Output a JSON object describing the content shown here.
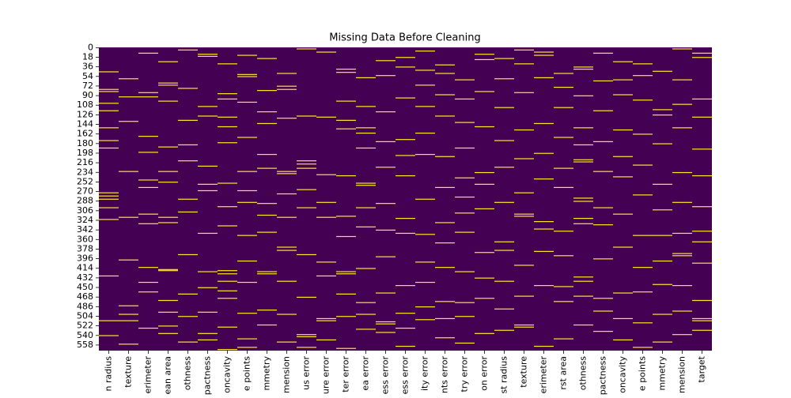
{
  "chart_data": {
    "type": "heatmap",
    "title": "Missing Data Before Cleaning",
    "colors": {
      "present": "#440154",
      "missing": "#fde725"
    },
    "ylim": [
      0,
      569
    ],
    "yticks": [
      0,
      18,
      36,
      54,
      72,
      90,
      108,
      126,
      144,
      162,
      180,
      198,
      216,
      234,
      252,
      270,
      288,
      306,
      324,
      342,
      360,
      378,
      396,
      414,
      432,
      450,
      468,
      486,
      504,
      522,
      540,
      558
    ],
    "series": [
      {
        "name": "n radius",
        "values": [
          45,
          78,
          82,
          104,
          118,
          150,
          174,
          188,
          272,
          278,
          284,
          300,
          322,
          428,
          512,
          540
        ]
      },
      {
        "name": "texture",
        "values": [
          58,
          92,
          138,
          232,
          318,
          398,
          484,
          500,
          512,
          556
        ]
      },
      {
        "name": "erimeter",
        "values": [
          10,
          84,
          92,
          166,
          196,
          248,
          262,
          312,
          330,
          412,
          440,
          458,
          526
        ]
      },
      {
        "name": "ean area",
        "values": [
          26,
          66,
          70,
          100,
          186,
          232,
          252,
          318,
          328,
          416,
          418,
          474,
          496,
          522,
          536
        ]
      },
      {
        "name": "othness",
        "values": [
          4,
          76,
          136,
          182,
          212,
          284,
          308,
          388,
          462,
          504,
          552
        ]
      },
      {
        "name": "pactness",
        "values": [
          12,
          16,
          110,
          128,
          222,
          256,
          268,
          348,
          420,
          450,
          496,
          536,
          548
        ]
      },
      {
        "name": "oncavity",
        "values": [
          30,
          86,
          96,
          130,
          148,
          178,
          254,
          298,
          334,
          418,
          424,
          438,
          456,
          470,
          524,
          566
        ]
      },
      {
        "name": "e points",
        "values": [
          14,
          50,
          54,
          102,
          168,
          232,
          268,
          290,
          352,
          400,
          440,
          498,
          546,
          562
        ]
      },
      {
        "name": "mmetry",
        "values": [
          20,
          80,
          120,
          142,
          200,
          226,
          292,
          314,
          346,
          420,
          424,
          492,
          520
        ]
      },
      {
        "name": "mension",
        "values": [
          48,
          72,
          78,
          132,
          232,
          236,
          274,
          318,
          374,
          380,
          438,
          500,
          552
        ]
      },
      {
        "name": "us error",
        "values": [
          2,
          128,
          212,
          218,
          226,
          266,
          300,
          388,
          468,
          538,
          542,
          562
        ]
      },
      {
        "name": "ure error",
        "values": [
          8,
          130,
          238,
          290,
          318,
          402,
          428,
          508,
          512,
          548
        ]
      },
      {
        "name": "ter error",
        "values": [
          40,
          46,
          100,
          136,
          152,
          240,
          316,
          354,
          420,
          424,
          462,
          504,
          564
        ]
      },
      {
        "name": "ea error",
        "values": [
          56,
          110,
          150,
          160,
          188,
          254,
          258,
          300,
          336,
          414,
          478,
          500,
          528
        ]
      },
      {
        "name": "ess error",
        "values": [
          24,
          52,
          120,
          176,
          224,
          292,
          342,
          392,
          460,
          514,
          518,
          534
        ]
      },
      {
        "name": "ess error",
        "values": [
          18,
          36,
          94,
          172,
          202,
          240,
          320,
          348,
          446,
          498,
          526,
          560
        ]
      },
      {
        "name": "ity error",
        "values": [
          6,
          42,
          70,
          110,
          160,
          200,
          284,
          350,
          402,
          440,
          486,
          510
        ]
      },
      {
        "name": "nts error",
        "values": [
          32,
          48,
          88,
          128,
          204,
          262,
          328,
          366,
          412,
          476,
          508,
          544
        ]
      },
      {
        "name": "try error",
        "values": [
          60,
          96,
          140,
          188,
          244,
          280,
          310,
          346,
          420,
          478,
          504,
          554
        ]
      },
      {
        "name": "on error",
        "values": [
          12,
          22,
          82,
          148,
          234,
          256,
          302,
          384,
          432,
          470,
          536
        ]
      },
      {
        "name": "st radius",
        "values": [
          20,
          58,
          112,
          174,
          224,
          290,
          364,
          380,
          438,
          490,
          530
        ]
      },
      {
        "name": "texture",
        "values": [
          4,
          30,
          84,
          154,
          208,
          272,
          312,
          316,
          408,
          466,
          520,
          524
        ]
      },
      {
        "name": "erimeter",
        "values": [
          8,
          14,
          56,
          142,
          198,
          246,
          326,
          340,
          382,
          446,
          560
        ]
      },
      {
        "name": "rst area",
        "values": [
          48,
          74,
          112,
          168,
          226,
          262,
          344,
          390,
          448,
          476,
          546
        ]
      },
      {
        "name": "othness",
        "values": [
          36,
          40,
          90,
          150,
          182,
          210,
          214,
          282,
          288,
          320,
          330,
          430,
          438,
          466,
          520
        ]
      },
      {
        "name": "pactness",
        "values": [
          10,
          62,
          118,
          176,
          232,
          300,
          332,
          396,
          470,
          494,
          532
        ]
      },
      {
        "name": "oncavity",
        "values": [
          26,
          60,
          88,
          154,
          204,
          242,
          312,
          374,
          460,
          508,
          548
        ]
      },
      {
        "name": "e points",
        "values": [
          30,
          52,
          98,
          162,
          220,
          276,
          352,
          412,
          458,
          516,
          562
        ]
      },
      {
        "name": "mmetry",
        "values": [
          44,
          116,
          126,
          180,
          256,
          304,
          352,
          400,
          444,
          500,
          552
        ]
      },
      {
        "name": "mension",
        "values": [
          2,
          60,
          106,
          150,
          234,
          290,
          348,
          386,
          390,
          446,
          494,
          538
        ]
      },
      {
        "name": "target",
        "values": [
          10,
          18,
          96,
          130,
          190,
          240,
          298,
          344,
          364,
          404,
          474,
          508,
          512,
          530
        ]
      }
    ]
  }
}
